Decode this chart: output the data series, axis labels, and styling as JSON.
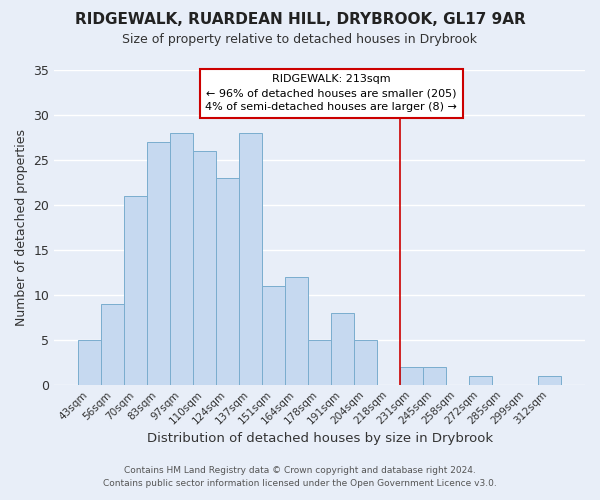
{
  "title": "RIDGEWALK, RUARDEAN HILL, DRYBROOK, GL17 9AR",
  "subtitle": "Size of property relative to detached houses in Drybrook",
  "xlabel": "Distribution of detached houses by size in Drybrook",
  "ylabel": "Number of detached properties",
  "bar_color": "#c6d9f0",
  "bar_edgecolor": "#7aadce",
  "background_color": "#e8eef8",
  "grid_color": "#ffffff",
  "categories": [
    "43sqm",
    "56sqm",
    "70sqm",
    "83sqm",
    "97sqm",
    "110sqm",
    "124sqm",
    "137sqm",
    "151sqm",
    "164sqm",
    "178sqm",
    "191sqm",
    "204sqm",
    "218sqm",
    "231sqm",
    "245sqm",
    "258sqm",
    "272sqm",
    "285sqm",
    "299sqm",
    "312sqm"
  ],
  "values": [
    5,
    9,
    21,
    27,
    28,
    26,
    23,
    28,
    11,
    12,
    5,
    8,
    5,
    0,
    2,
    2,
    0,
    1,
    0,
    0,
    1
  ],
  "ylim": [
    0,
    35
  ],
  "yticks": [
    0,
    5,
    10,
    15,
    20,
    25,
    30,
    35
  ],
  "vline_x": 13.5,
  "annotation_title": "RIDGEWALK: 213sqm",
  "annotation_line1": "← 96% of detached houses are smaller (205)",
  "annotation_line2": "4% of semi-detached houses are larger (8) →",
  "annotation_box_color": "#ffffff",
  "annotation_box_edgecolor": "#cc0000",
  "footnote1": "Contains HM Land Registry data © Crown copyright and database right 2024.",
  "footnote2": "Contains public sector information licensed under the Open Government Licence v3.0."
}
